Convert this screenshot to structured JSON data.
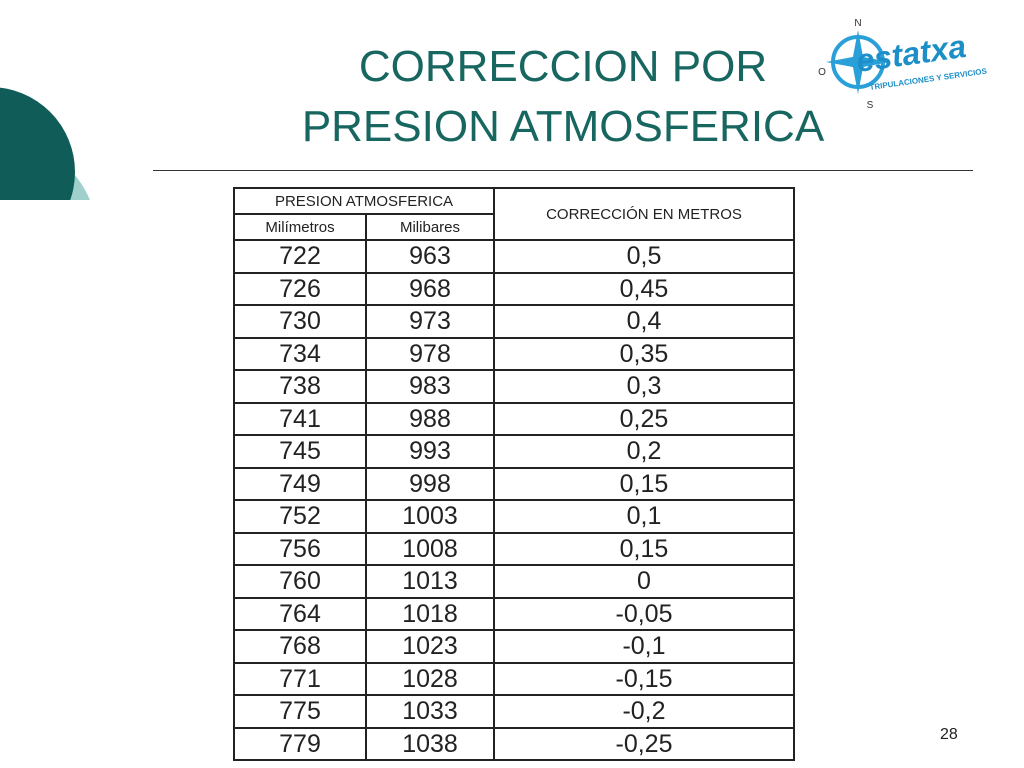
{
  "slide": {
    "title_lines": [
      "CORRECCION POR",
      "PRESION ATMOSFERICA"
    ],
    "logo": {
      "north": "N",
      "west": "O",
      "south": "S",
      "name": "estatxa",
      "tagline": "TRIPULACIONES Y SERVICIOS"
    },
    "page_number": "28"
  },
  "table": {
    "group_header": "PRESION ATMOSFERICA",
    "columns": [
      "Milímetros",
      "Milibares",
      "CORRECCIÓN EN METROS"
    ],
    "rows": [
      [
        "722",
        "963",
        "0,5"
      ],
      [
        "726",
        "968",
        "0,45"
      ],
      [
        "730",
        "973",
        "0,4"
      ],
      [
        "734",
        "978",
        "0,35"
      ],
      [
        "738",
        "983",
        "0,3"
      ],
      [
        "741",
        "988",
        "0,25"
      ],
      [
        "745",
        "993",
        "0,2"
      ],
      [
        "749",
        "998",
        "0,15"
      ],
      [
        "752",
        "1003",
        "0,1"
      ],
      [
        "756",
        "1008",
        "0,15"
      ],
      [
        "760",
        "1013",
        "0"
      ],
      [
        "764",
        "1018",
        "-0,05"
      ],
      [
        "768",
        "1023",
        "-0,1"
      ],
      [
        "771",
        "1028",
        "-0,15"
      ],
      [
        "775",
        "1033",
        "-0,2"
      ],
      [
        "779",
        "1038",
        "-0,25"
      ]
    ]
  }
}
